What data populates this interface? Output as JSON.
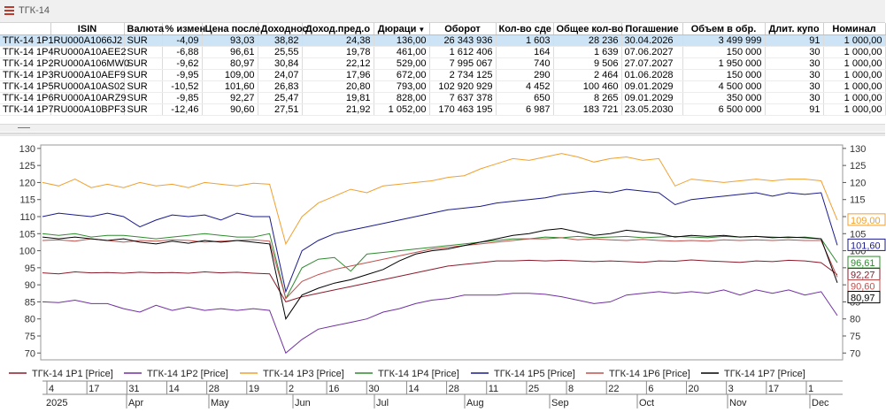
{
  "window": {
    "title": "ТГК-14",
    "icon": "list-icon"
  },
  "table": {
    "columns": [
      "ISIN",
      "Валюта",
      "% измен",
      "Цена после",
      "Доходнос",
      "Доход.пред.о",
      "Дюраци",
      "Оборот",
      "Кол-во сде",
      "Общее кол-во",
      "Погашение",
      "Объем в обр.",
      "Длит. купо",
      "Номинал"
    ],
    "sorted_column": "Дюраци",
    "rows": [
      {
        "name": "ТГК-14 1P1",
        "cells": [
          "RU000A1066J2",
          "SUR",
          "-4,09",
          "93,03",
          "38,82",
          "24,38",
          "136,00",
          "26 343 936",
          "1 603",
          "28 236",
          "30.04.2026",
          "3 499 999",
          "91",
          "1 000,00"
        ]
      },
      {
        "name": "ТГК-14 1P4",
        "cells": [
          "RU000A10AEE2",
          "SUR",
          "-6,88",
          "96,61",
          "25,55",
          "19,78",
          "461,00",
          "1 612 406",
          "164",
          "1 639",
          "07.06.2027",
          "150 000",
          "30",
          "1 000,00"
        ]
      },
      {
        "name": "ТГК-14 1P2",
        "cells": [
          "RU000A106MW0",
          "SUR",
          "-9,62",
          "80,97",
          "30,84",
          "22,12",
          "529,00",
          "7 995 067",
          "740",
          "9 506",
          "27.07.2027",
          "1 950 000",
          "30",
          "1 000,00"
        ]
      },
      {
        "name": "ТГК-14 1P3",
        "cells": [
          "RU000A10AEF9",
          "SUR",
          "-9,95",
          "109,00",
          "24,07",
          "17,96",
          "672,00",
          "2 734 125",
          "290",
          "2 464",
          "01.06.2028",
          "150 000",
          "30",
          "1 000,00"
        ]
      },
      {
        "name": "ТГК-14 1P5",
        "cells": [
          "RU000A10AS02",
          "SUR",
          "-10,52",
          "101,60",
          "26,83",
          "20,80",
          "793,00",
          "102 920 929",
          "4 452",
          "100 460",
          "09.01.2029",
          "4 500 000",
          "30",
          "1 000,00"
        ]
      },
      {
        "name": "ТГК-14 1P6",
        "cells": [
          "RU000A10ARZ9",
          "SUR",
          "-9,85",
          "92,27",
          "25,47",
          "19,81",
          "828,00",
          "7 637 378",
          "650",
          "8 265",
          "09.01.2029",
          "350 000",
          "30",
          "1 000,00"
        ]
      },
      {
        "name": "ТГК-14 1P7",
        "cells": [
          "RU000A10BPF3",
          "SUR",
          "-12,46",
          "90,60",
          "27,51",
          "21,92",
          "1 052,00",
          "170 463 195",
          "6 987",
          "183 721",
          "23.05.2030",
          "6 500 000",
          "91",
          "1 000,00"
        ]
      }
    ]
  },
  "chart_data": {
    "type": "line",
    "ylim": [
      68,
      131
    ],
    "y_ticks": [
      70,
      75,
      80,
      85,
      90,
      95,
      100,
      105,
      110,
      115,
      120,
      125,
      130
    ],
    "series": [
      {
        "name": "ТГК-14 1P1 [Price]",
        "color": "#8b1a2b",
        "values": [
          93.5,
          93.2,
          93.8,
          93.5,
          93.6,
          93.4,
          93.7,
          93.5,
          93.6,
          93.4,
          93.8,
          93.5,
          93.7,
          93.4,
          93.2,
          85.0,
          86.5,
          87.5,
          88.5,
          89.5,
          90.5,
          91.5,
          92.5,
          93.5,
          94.5,
          95.5,
          96.0,
          96.5,
          97.0,
          97.0,
          97.2,
          97.0,
          97.2,
          97.0,
          96.8,
          97.0,
          96.8,
          96.6,
          97.0,
          96.9,
          97.3,
          97.0,
          96.8,
          96.6,
          97.0,
          96.8,
          97.2,
          97.0,
          96.5,
          93.0
        ]
      },
      {
        "name": "ТГК-14 1P2 [Price]",
        "color": "#7030a0",
        "values": [
          85.0,
          84.8,
          85.5,
          84.5,
          84.5,
          83.0,
          82.0,
          84.0,
          82.5,
          83.5,
          82.5,
          83.0,
          82.5,
          83.0,
          82.5,
          70.0,
          74.0,
          77.0,
          78.0,
          79.0,
          80.0,
          82.0,
          83.0,
          84.5,
          85.5,
          86.0,
          87.0,
          87.0,
          87.0,
          87.5,
          87.5,
          87.2,
          86.5,
          85.5,
          84.5,
          85.0,
          87.0,
          87.5,
          88.0,
          87.5,
          88.0,
          87.5,
          88.5,
          87.0,
          88.5,
          87.5,
          88.5,
          87.0,
          88.0,
          81.0
        ]
      },
      {
        "name": "ТГК-14 1P3 [Price]",
        "color": "#f0a030",
        "values": [
          120.0,
          119.0,
          121.0,
          118.5,
          119.5,
          118.5,
          120.0,
          119.0,
          119.5,
          118.5,
          120.0,
          119.5,
          119.0,
          119.8,
          119.5,
          102.0,
          110.0,
          114.0,
          116.0,
          118.0,
          117.0,
          119.0,
          119.5,
          120.0,
          120.5,
          121.5,
          122.0,
          124.0,
          125.5,
          127.0,
          126.5,
          127.5,
          128.5,
          127.5,
          126.0,
          127.0,
          127.5,
          126.5,
          127.0,
          119.0,
          121.0,
          120.5,
          120.0,
          120.5,
          121.0,
          120.5,
          121.0,
          121.0,
          120.5,
          109.0
        ]
      },
      {
        "name": "ТГК-14 1P4 [Price]",
        "color": "#2e8b2e",
        "values": [
          105.0,
          104.5,
          105.0,
          104.0,
          104.5,
          104.5,
          104.0,
          103.5,
          104.0,
          104.5,
          105.0,
          104.5,
          104.0,
          104.0,
          105.0,
          86.0,
          95.0,
          97.5,
          98.0,
          94.0,
          99.0,
          99.5,
          100.0,
          100.5,
          101.0,
          101.5,
          102.0,
          102.5,
          103.0,
          103.5,
          103.5,
          104.0,
          103.8,
          104.2,
          103.8,
          104.0,
          104.2,
          103.8,
          104.0,
          104.2,
          104.0,
          103.8,
          104.2,
          104.0,
          104.2,
          104.0,
          103.8,
          104.0,
          103.5,
          96.5
        ]
      },
      {
        "name": "ТГК-14 1P5 [Price]",
        "color": "#1a1a8c",
        "values": [
          110.0,
          111.0,
          110.5,
          110.0,
          111.0,
          110.0,
          107.0,
          109.0,
          110.5,
          110.0,
          110.5,
          109.0,
          111.0,
          110.0,
          110.0,
          88.0,
          100.0,
          103.0,
          105.0,
          106.0,
          107.0,
          108.0,
          109.0,
          110.0,
          111.0,
          112.0,
          112.5,
          113.0,
          114.0,
          114.5,
          115.0,
          115.5,
          116.5,
          117.0,
          117.5,
          117.0,
          118.0,
          117.5,
          117.0,
          113.5,
          115.0,
          115.5,
          116.0,
          116.5,
          117.0,
          116.0,
          117.0,
          116.5,
          117.0,
          101.6
        ]
      },
      {
        "name": "ТГК-14 1P6 [Price]",
        "color": "#c0504d",
        "values": [
          103.0,
          103.2,
          102.8,
          103.5,
          103.0,
          102.5,
          103.0,
          102.8,
          103.2,
          103.0,
          102.5,
          102.8,
          103.0,
          103.2,
          102.8,
          86.0,
          91.0,
          93.0,
          94.5,
          95.5,
          96.5,
          97.5,
          98.5,
          99.5,
          100.5,
          101.0,
          101.5,
          102.0,
          102.5,
          103.0,
          103.5,
          103.5,
          103.8,
          103.2,
          103.5,
          103.2,
          103.0,
          103.3,
          103.0,
          102.8,
          103.0,
          102.8,
          103.2,
          103.0,
          103.2,
          103.0,
          103.2,
          103.0,
          103.0,
          92.27
        ]
      },
      {
        "name": "ТГК-14 1P7 [Price]",
        "color": "#000000",
        "values": [
          104.0,
          103.5,
          104.0,
          103.5,
          103.0,
          103.5,
          102.5,
          102.0,
          102.8,
          102.2,
          103.0,
          102.5,
          103.0,
          102.5,
          102.0,
          80.0,
          87.0,
          89.0,
          90.5,
          91.5,
          93.0,
          94.5,
          97.0,
          99.0,
          100.0,
          100.5,
          101.5,
          102.5,
          103.5,
          104.5,
          105.0,
          106.0,
          106.5,
          105.5,
          104.5,
          105.0,
          106.0,
          105.5,
          105.0,
          104.0,
          104.5,
          104.2,
          104.5,
          104.0,
          104.2,
          103.8,
          104.0,
          103.8,
          103.5,
          90.6
        ]
      }
    ],
    "last_value_labels": [
      "109,00",
      "101,60",
      "96,61",
      "92,27",
      "90,60",
      "80,97"
    ],
    "time_axis": {
      "days": [
        "4",
        "17",
        "31",
        "14",
        "28",
        "19",
        "2",
        "16",
        "30",
        "14",
        "28",
        "11",
        "25",
        "8",
        "22",
        "6",
        "20",
        "3",
        "17",
        "1"
      ],
      "year": "2025",
      "months": [
        "Apr",
        "May",
        "Jun",
        "Jul",
        "Aug",
        "Sep",
        "Oct",
        "Nov",
        "Dec"
      ]
    }
  }
}
